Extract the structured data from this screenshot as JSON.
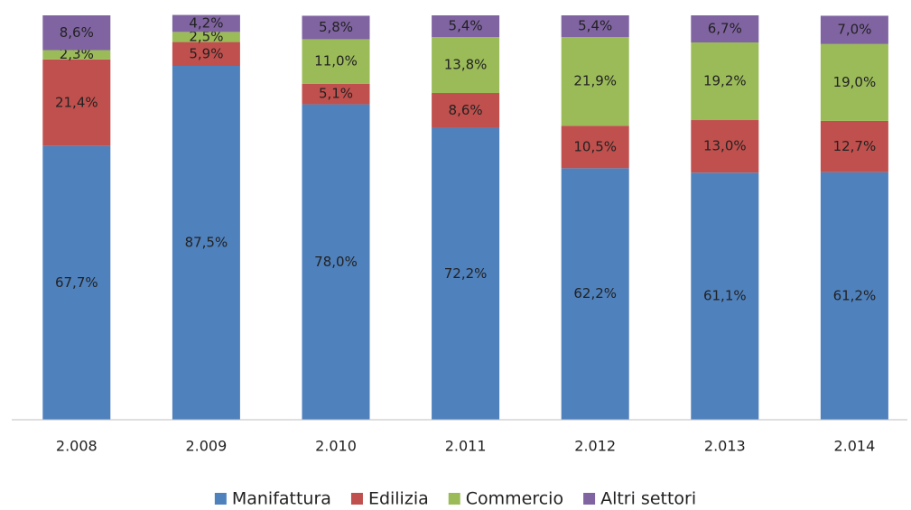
{
  "chart_data": {
    "type": "stacked_bar",
    "categories": [
      "2.008",
      "2.009",
      "2.010",
      "2.011",
      "2.012",
      "2.013",
      "2.014"
    ],
    "ylim": [
      0,
      100
    ],
    "series": [
      {
        "name": "Manifattura",
        "color": "#4f81bd",
        "values": [
          67.7,
          87.5,
          78.0,
          72.2,
          62.2,
          61.1,
          61.2
        ],
        "value_labels": [
          "67,7%",
          "87,5%",
          "78,0%",
          "72,2%",
          "62,2%",
          "61,1%",
          "61,2%"
        ]
      },
      {
        "name": "Edilizia",
        "color": "#c0504d",
        "values": [
          21.4,
          5.9,
          5.1,
          8.6,
          10.5,
          13.0,
          12.7
        ],
        "value_labels": [
          "21,4%",
          "5,9%",
          "5,1%",
          "8,6%",
          "10,5%",
          "13,0%",
          "12,7%"
        ]
      },
      {
        "name": "Commercio",
        "color": "#9bbb59",
        "values": [
          2.3,
          2.5,
          11.0,
          13.8,
          21.9,
          19.2,
          19.0
        ],
        "value_labels": [
          "2,3%",
          "2,5%",
          "11,0%",
          "13,8%",
          "21,9%",
          "19,2%",
          "19,0%"
        ]
      },
      {
        "name": "Altri settori",
        "color": "#8064a2",
        "values": [
          8.6,
          4.2,
          5.8,
          5.4,
          5.4,
          6.7,
          7.0
        ],
        "value_labels": [
          "8,6%",
          "4,2%",
          "5,8%",
          "5,4%",
          "5,4%",
          "6,7%",
          "7,0%"
        ]
      }
    ],
    "legend": "bottom"
  }
}
